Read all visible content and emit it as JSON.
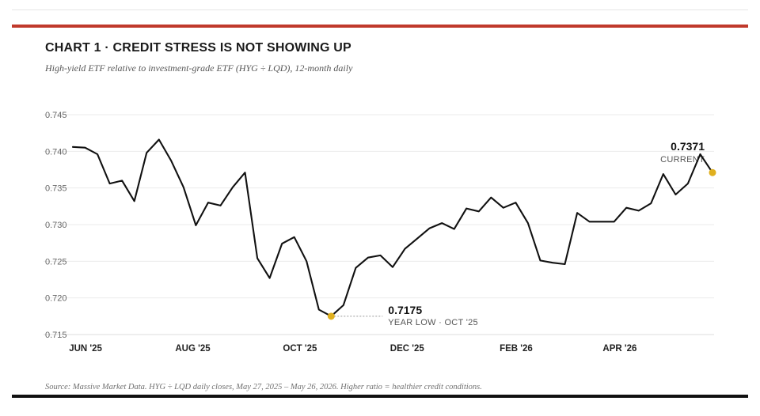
{
  "header": {
    "title": "CHART 1 · CREDIT STRESS IS NOT SHOWING UP",
    "subtitle": "High-yield ETF relative to investment-grade ETF (HYG ÷ LQD), 12-month daily"
  },
  "footer": {
    "source": "Source: Massive Market Data. HYG ÷ LQD daily closes, May 27, 2025 – May 26, 2026. Higher ratio = healthier credit conditions."
  },
  "colors": {
    "accent_rule": "#c0392b",
    "line": "#111111",
    "marker": "#e0b01f",
    "grid": "#ebebeb"
  },
  "chart_data": {
    "type": "line",
    "x_unit": "date",
    "x_range": [
      "2025-05-27",
      "2026-05-26"
    ],
    "y_ticks": [
      "0.745",
      "0.740",
      "0.735",
      "0.730",
      "0.725",
      "0.720",
      "0.715"
    ],
    "x_ticks": [
      {
        "label": "JUN '25",
        "date": "2025-06-01"
      },
      {
        "label": "AUG '25",
        "date": "2025-08-01"
      },
      {
        "label": "OCT '25",
        "date": "2025-10-01"
      },
      {
        "label": "DEC '25",
        "date": "2025-12-01"
      },
      {
        "label": "FEB '26",
        "date": "2026-02-01"
      },
      {
        "label": "APR '26",
        "date": "2026-04-01"
      }
    ],
    "ylim": [
      0.715,
      0.745
    ],
    "grid": "horizontal",
    "series": [
      {
        "points": [
          [
            "2025-05-27",
            0.7406
          ],
          [
            "2025-06-03",
            0.7405
          ],
          [
            "2025-06-10",
            0.7396
          ],
          [
            "2025-06-17",
            0.7356
          ],
          [
            "2025-06-24",
            0.736
          ],
          [
            "2025-07-01",
            0.7332
          ],
          [
            "2025-07-08",
            0.7398
          ],
          [
            "2025-07-15",
            0.7416
          ],
          [
            "2025-07-22",
            0.7387
          ],
          [
            "2025-07-29",
            0.7351
          ],
          [
            "2025-08-05",
            0.7299
          ],
          [
            "2025-08-12",
            0.733
          ],
          [
            "2025-08-19",
            0.7326
          ],
          [
            "2025-08-26",
            0.7351
          ],
          [
            "2025-09-02",
            0.7371
          ],
          [
            "2025-09-09",
            0.7254
          ],
          [
            "2025-09-16",
            0.7227
          ],
          [
            "2025-09-23",
            0.7274
          ],
          [
            "2025-09-30",
            0.7283
          ],
          [
            "2025-10-07",
            0.725
          ],
          [
            "2025-10-14",
            0.7184
          ],
          [
            "2025-10-21",
            0.7175
          ],
          [
            "2025-10-28",
            0.719
          ],
          [
            "2025-11-04",
            0.7241
          ],
          [
            "2025-11-11",
            0.7255
          ],
          [
            "2025-11-18",
            0.7258
          ],
          [
            "2025-11-25",
            0.7242
          ],
          [
            "2025-12-02",
            0.7267
          ],
          [
            "2025-12-09",
            0.7281
          ],
          [
            "2025-12-16",
            0.7295
          ],
          [
            "2025-12-23",
            0.7302
          ],
          [
            "2025-12-30",
            0.7294
          ],
          [
            "2026-01-06",
            0.7322
          ],
          [
            "2026-01-13",
            0.7318
          ],
          [
            "2026-01-20",
            0.7337
          ],
          [
            "2026-01-27",
            0.7323
          ],
          [
            "2026-02-03",
            0.733
          ],
          [
            "2026-02-10",
            0.7302
          ],
          [
            "2026-02-17",
            0.7251
          ],
          [
            "2026-02-24",
            0.7248
          ],
          [
            "2026-03-03",
            0.7246
          ],
          [
            "2026-03-10",
            0.7316
          ],
          [
            "2026-03-17",
            0.7304
          ],
          [
            "2026-03-24",
            0.7304
          ],
          [
            "2026-03-31",
            0.7304
          ],
          [
            "2026-04-07",
            0.7323
          ],
          [
            "2026-04-14",
            0.7319
          ],
          [
            "2026-04-21",
            0.7329
          ],
          [
            "2026-04-28",
            0.7369
          ],
          [
            "2026-05-05",
            0.7341
          ],
          [
            "2026-05-12",
            0.7356
          ],
          [
            "2026-05-19",
            0.7396
          ],
          [
            "2026-05-26",
            0.7371
          ]
        ]
      }
    ],
    "annotations": [
      {
        "value": "0.7175",
        "label": "YEAR LOW · OCT '25",
        "date": "2025-10-21",
        "y": 0.7175
      },
      {
        "value": "0.7371",
        "label": "CURRENT",
        "date": "2026-05-26",
        "y": 0.7371
      }
    ]
  }
}
